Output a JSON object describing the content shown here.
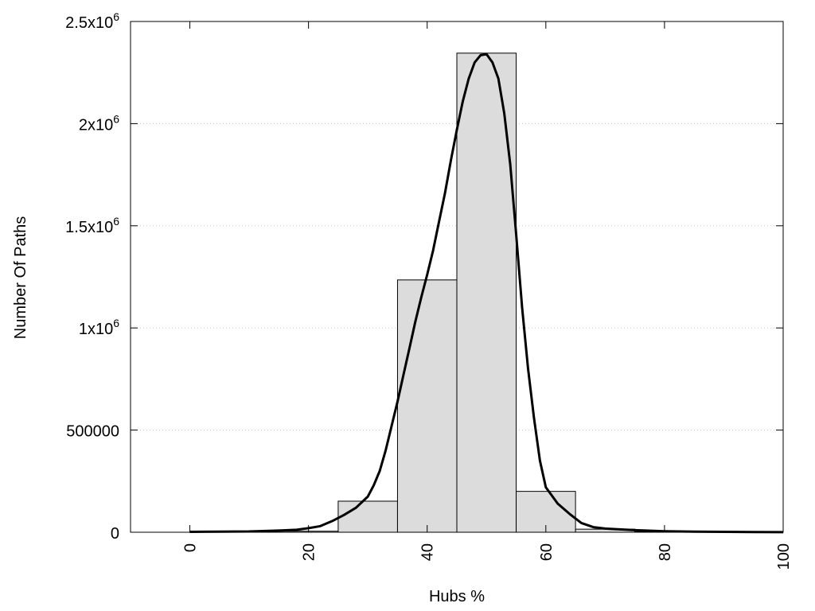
{
  "chart_data": {
    "type": "bar",
    "subtype": "histogram-with-fitted-curve",
    "title": "",
    "xlabel": "Hubs %",
    "ylabel": "Number Of Paths",
    "xlim": [
      -10,
      100
    ],
    "ylim": [
      0,
      2500000
    ],
    "x_ticks": [
      0,
      20,
      40,
      60,
      80,
      100
    ],
    "x_tick_labels": [
      "0",
      "20",
      "40",
      "60",
      "80",
      "100"
    ],
    "y_ticks": [
      {
        "value": 0,
        "mantissa": "0",
        "exp": ""
      },
      {
        "value": 500000,
        "mantissa": "500000",
        "exp": ""
      },
      {
        "value": 1000000,
        "mantissa": "1x10",
        "exp": "6"
      },
      {
        "value": 1500000,
        "mantissa": "1.5x10",
        "exp": "6"
      },
      {
        "value": 2000000,
        "mantissa": "2x10",
        "exp": "6"
      },
      {
        "value": 2500000,
        "mantissa": "2.5x10",
        "exp": "6"
      }
    ],
    "grid": {
      "horizontal": true,
      "vertical": false,
      "style": "dotted"
    },
    "colors": {
      "bar_fill": "#dcdcdc",
      "bar_stroke": "#000000",
      "curve": "#000000",
      "grid": "#c8c8c8"
    },
    "bins": [
      {
        "center": 0,
        "width": 10,
        "value": 0
      },
      {
        "center": 10,
        "width": 10,
        "value": 0
      },
      {
        "center": 20,
        "width": 10,
        "value": 5000
      },
      {
        "center": 30,
        "width": 10,
        "value": 152000
      },
      {
        "center": 40,
        "width": 10,
        "value": 1235000
      },
      {
        "center": 50,
        "width": 10,
        "value": 2345000
      },
      {
        "center": 60,
        "width": 10,
        "value": 200000
      },
      {
        "center": 70,
        "width": 10,
        "value": 15000
      },
      {
        "center": 80,
        "width": 10,
        "value": 2000
      },
      {
        "center": 90,
        "width": 10,
        "value": 0
      }
    ],
    "curve": [
      [
        0,
        2000
      ],
      [
        5,
        3000
      ],
      [
        10,
        4000
      ],
      [
        15,
        8000
      ],
      [
        18,
        12000
      ],
      [
        20,
        20000
      ],
      [
        22,
        30000
      ],
      [
        24,
        55000
      ],
      [
        26,
        85000
      ],
      [
        28,
        120000
      ],
      [
        30,
        175000
      ],
      [
        31,
        230000
      ],
      [
        32,
        300000
      ],
      [
        33,
        400000
      ],
      [
        34,
        520000
      ],
      [
        35,
        640000
      ],
      [
        36,
        770000
      ],
      [
        37,
        900000
      ],
      [
        38,
        1030000
      ],
      [
        39,
        1150000
      ],
      [
        40,
        1260000
      ],
      [
        41,
        1380000
      ],
      [
        42,
        1520000
      ],
      [
        43,
        1660000
      ],
      [
        44,
        1820000
      ],
      [
        45,
        1970000
      ],
      [
        46,
        2110000
      ],
      [
        47,
        2220000
      ],
      [
        48,
        2300000
      ],
      [
        49,
        2335000
      ],
      [
        50,
        2340000
      ],
      [
        51,
        2300000
      ],
      [
        52,
        2220000
      ],
      [
        53,
        2050000
      ],
      [
        54,
        1800000
      ],
      [
        55,
        1460000
      ],
      [
        56,
        1100000
      ],
      [
        57,
        800000
      ],
      [
        58,
        560000
      ],
      [
        59,
        350000
      ],
      [
        60,
        220000
      ],
      [
        62,
        140000
      ],
      [
        64,
        90000
      ],
      [
        66,
        45000
      ],
      [
        68,
        25000
      ],
      [
        70,
        18000
      ],
      [
        75,
        10000
      ],
      [
        80,
        5000
      ],
      [
        85,
        3000
      ],
      [
        90,
        2000
      ],
      [
        95,
        1000
      ],
      [
        100,
        500
      ]
    ]
  }
}
